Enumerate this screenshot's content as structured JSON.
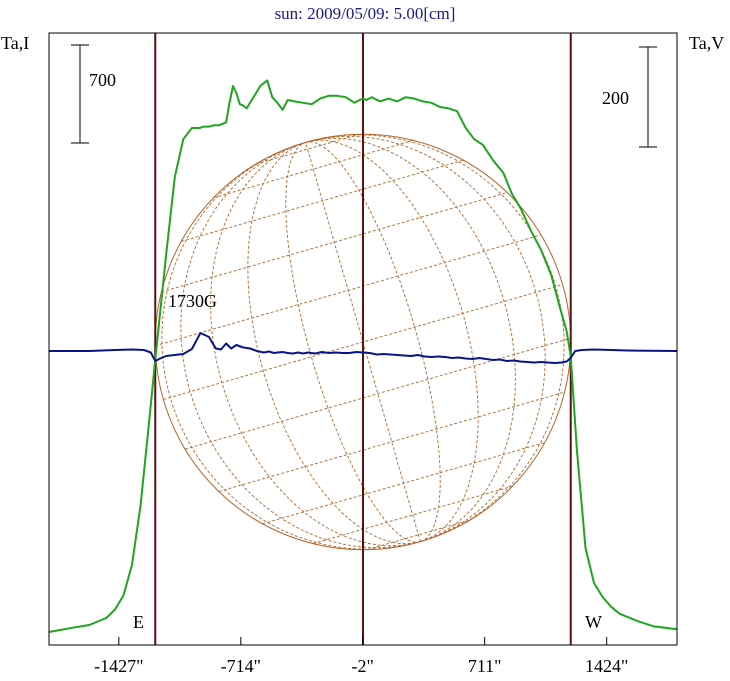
{
  "title": "sun: 2009/05/09: 5.00[cm]",
  "colors": {
    "intensity": "#1fa51f",
    "polarization": "#0a1585",
    "grid": "#b5652a",
    "guides": "#5a1010",
    "frame": "#000000",
    "title": "#1a1a8c"
  },
  "chart_data": {
    "type": "line",
    "title": "sun: 2009/05/09: 5.00[cm]",
    "xlabel": "",
    "x_unit": "arcsec",
    "xlim": [
      -1835,
      1835
    ],
    "xticks": [
      {
        "value": -1427,
        "label": "-1427\""
      },
      {
        "value": -714,
        "label": "-714\""
      },
      {
        "value": -2,
        "label": "-2\""
      },
      {
        "value": 711,
        "label": "711\""
      },
      {
        "value": 1424,
        "label": "1424\""
      }
    ],
    "left_axis_label": "Ta,I",
    "right_axis_label": "Ta,V",
    "left_scale_bar": {
      "label": "700",
      "value": 700
    },
    "right_scale_bar": {
      "label": "200",
      "value": 200
    },
    "limb_markers": {
      "east": -1214,
      "center": 0,
      "west": 1214
    },
    "limb_labels": {
      "east": "E",
      "west": "W"
    },
    "solar_disk_radius_arcsec": 1214,
    "annotation": "1730G",
    "series": [
      {
        "key": "I",
        "axis": "left",
        "x": [
          -1835,
          -1700,
          -1600,
          -1500,
          -1450,
          -1400,
          -1350,
          -1300,
          -1250,
          -1214,
          -1150,
          -1100,
          -1050,
          -1000,
          -980,
          -955,
          -930,
          -900,
          -870,
          -840,
          -820,
          -800,
          -780,
          -760,
          -740,
          -720,
          -700,
          -680,
          -640,
          -600,
          -560,
          -530,
          -500,
          -470,
          -440,
          -400,
          -350,
          -300,
          -250,
          -200,
          -150,
          -100,
          -50,
          -20,
          0,
          20,
          50,
          100,
          150,
          200,
          250,
          300,
          350,
          400,
          450,
          500,
          550,
          600,
          650,
          700,
          760,
          820,
          870,
          920,
          980,
          1040,
          1100,
          1150,
          1190,
          1214,
          1250,
          1300,
          1350,
          1400,
          1450,
          1500,
          1600,
          1700,
          1835
        ],
        "values": [
          0,
          30,
          50,
          100,
          160,
          260,
          480,
          900,
          1500,
          1950,
          2700,
          3250,
          3520,
          3600,
          3600,
          3600,
          3610,
          3610,
          3620,
          3620,
          3630,
          3640,
          3780,
          3900,
          3850,
          3770,
          3760,
          3740,
          3820,
          3900,
          3940,
          3820,
          3780,
          3730,
          3800,
          3790,
          3780,
          3770,
          3810,
          3830,
          3830,
          3820,
          3780,
          3800,
          3810,
          3800,
          3820,
          3790,
          3810,
          3790,
          3820,
          3810,
          3790,
          3780,
          3750,
          3740,
          3720,
          3600,
          3520,
          3480,
          3370,
          3280,
          3130,
          3030,
          2870,
          2730,
          2550,
          2320,
          2150,
          1970,
          1300,
          600,
          350,
          250,
          180,
          130,
          80,
          40,
          20
        ]
      },
      {
        "key": "V",
        "axis": "right",
        "x": [
          -1835,
          -1600,
          -1450,
          -1350,
          -1280,
          -1240,
          -1214,
          -1180,
          -1150,
          -1100,
          -1050,
          -1000,
          -950,
          -900,
          -860,
          -830,
          -800,
          -770,
          -740,
          -700,
          -660,
          -620,
          -580,
          -550,
          -520,
          -500,
          -470,
          -440,
          -410,
          -380,
          -350,
          -320,
          -280,
          -240,
          -200,
          -160,
          -120,
          -80,
          -40,
          0,
          40,
          80,
          120,
          160,
          200,
          240,
          280,
          320,
          360,
          400,
          440,
          480,
          520,
          560,
          600,
          640,
          680,
          720,
          760,
          800,
          840,
          880,
          920,
          960,
          1000,
          1040,
          1080,
          1120,
          1160,
          1190,
          1214,
          1240,
          1280,
          1350,
          1450,
          1550,
          1835
        ],
        "values": [
          0,
          0,
          2,
          3,
          2,
          -3,
          -20,
          -14,
          -10,
          -8,
          -6,
          4,
          36,
          28,
          5,
          3,
          15,
          5,
          12,
          7,
          5,
          0,
          -3,
          -1,
          -4,
          -3,
          -2,
          -4,
          -5,
          -3,
          -5,
          -3,
          -5,
          -2,
          -4,
          -3,
          -4,
          -4,
          -2,
          -3,
          -4,
          -7,
          -6,
          -7,
          -8,
          -9,
          -10,
          -8,
          -11,
          -12,
          -11,
          -12,
          -14,
          -13,
          -15,
          -16,
          -14,
          -16,
          -18,
          -17,
          -20,
          -19,
          -21,
          -22,
          -23,
          -22,
          -23,
          -24,
          -23,
          -21,
          -14,
          0,
          2,
          3,
          2,
          1,
          0
        ]
      }
    ]
  }
}
